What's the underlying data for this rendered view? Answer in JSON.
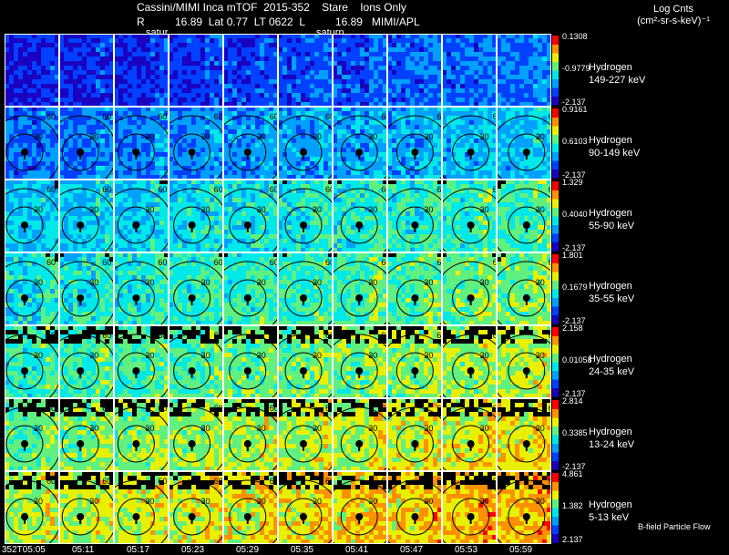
{
  "chart_data": {
    "type": "heatmap",
    "title": "Cassini/MIMI Inca mTOF  2015-352    Stare    Ions Only",
    "subtitle": "R          16.89  Lat 0.77  LT 0622  L          16.89   MIMI/APL",
    "probe_label": "satur",
    "probe_label_2": "saturn",
    "units_label": "Log Cnts",
    "units_sub": "(cm²-sr-s-keV)⁻¹",
    "footer": "B-field Particle Flow",
    "time_labels": [
      "352T05:05",
      "05:11",
      "05:17",
      "05:23",
      "05:29",
      "05:35",
      "05:41",
      "05:47",
      "05:53",
      "05:59"
    ],
    "contour_labels": [
      "30",
      "60"
    ],
    "rows": [
      {
        "species": "Hydrogen",
        "energy": "149-227 keV",
        "cmax": "0.1308",
        "cmid": "-0.9779",
        "cmin": "-2.137",
        "level": 0.1
      },
      {
        "species": "Hydrogen",
        "energy": "90-149 keV",
        "cmax": "0.9161",
        "cmid": "0.6103",
        "cmin": "-2.137",
        "level": 0.22
      },
      {
        "species": "Hydrogen",
        "energy": "55-90 keV",
        "cmax": "1.329",
        "cmid": "0.4040",
        "cmin": "-2.137",
        "level": 0.36
      },
      {
        "species": "Hydrogen",
        "energy": "35-55 keV",
        "cmax": "1.801",
        "cmid": "0.1679",
        "cmin": "-2.137",
        "level": 0.42
      },
      {
        "species": "Hydrogen",
        "energy": "24-35 keV",
        "cmax": "2.158",
        "cmid": "0.01058",
        "cmin": "-2.137",
        "level": 0.48
      },
      {
        "species": "Hydrogen",
        "energy": "13-24 keV",
        "cmax": "2.814",
        "cmid": "0.3385",
        "cmin": "-2.137",
        "level": 0.55
      },
      {
        "species": "Hydrogen",
        "energy": "5-13 keV",
        "cmax": "4.861",
        "cmid": "1.382",
        "cmin": "2.137",
        "level": 0.62
      }
    ],
    "colormap": [
      "#1a00c0",
      "#0040ff",
      "#00a0ff",
      "#00e8e8",
      "#60f080",
      "#e8f000",
      "#ff9000",
      "#ff0000"
    ]
  }
}
